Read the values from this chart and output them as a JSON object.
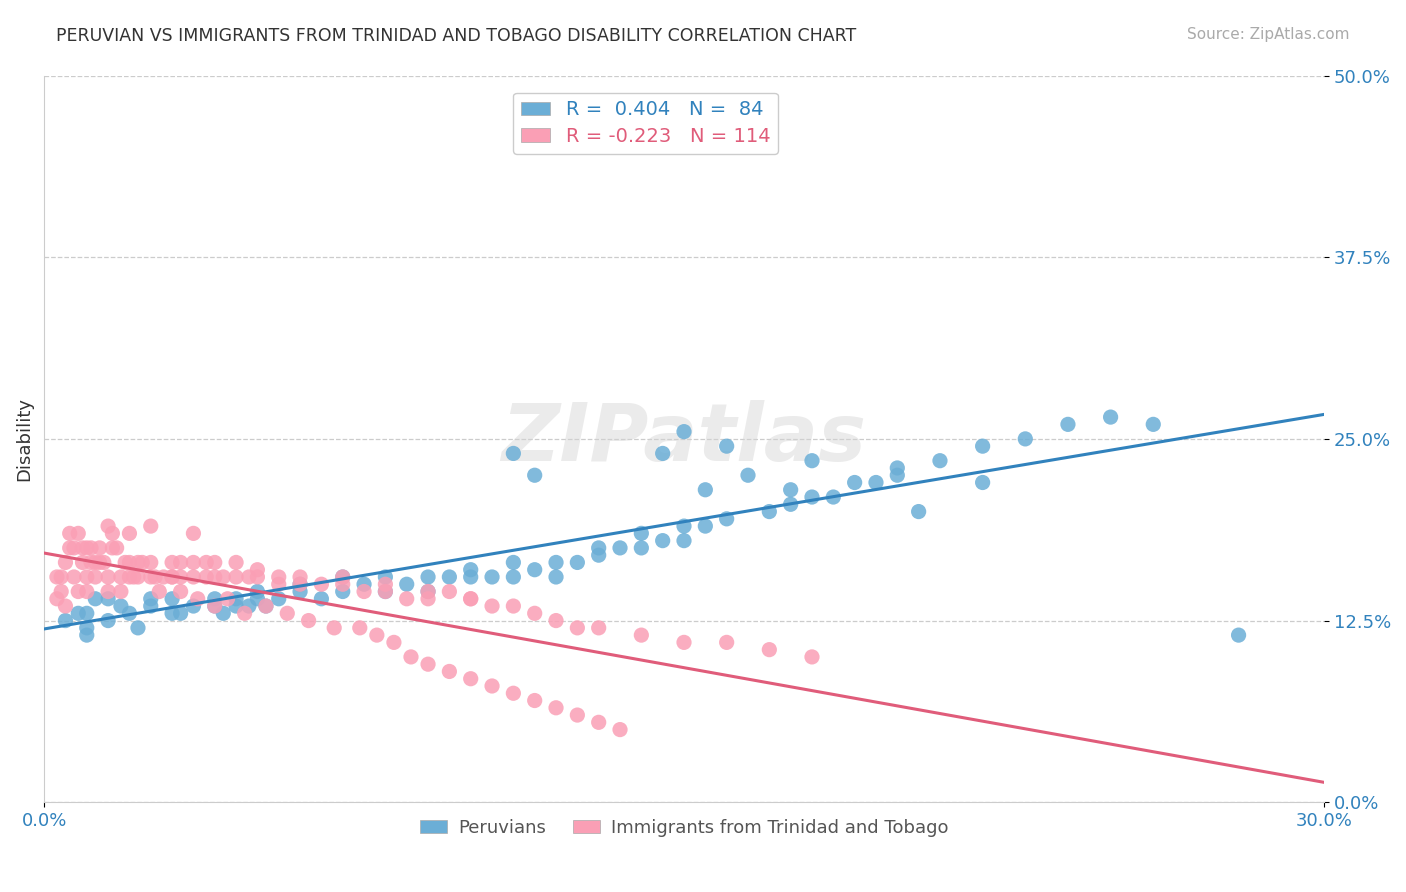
{
  "title": "PERUVIAN VS IMMIGRANTS FROM TRINIDAD AND TOBAGO DISABILITY CORRELATION CHART",
  "source": "Source: ZipAtlas.com",
  "ylabel": "Disability",
  "xlabel_ticks": [
    "0.0%",
    "30.0%"
  ],
  "ytick_labels": [
    "0.0%",
    "12.5%",
    "25.0%",
    "37.5%",
    "50.0%"
  ],
  "ytick_values": [
    0.0,
    0.125,
    0.25,
    0.375,
    0.5
  ],
  "xtick_values": [
    0.0,
    0.3
  ],
  "ylim": [
    0.0,
    0.5
  ],
  "xlim": [
    0.0,
    0.3
  ],
  "legend_blue_label": "R =  0.404   N =  84",
  "legend_pink_label": "R = -0.223   N = 114",
  "legend_bottom_blue": "Peruvians",
  "legend_bottom_pink": "Immigrants from Trinidad and Tobago",
  "blue_color": "#6baed6",
  "pink_color": "#fa9fb5",
  "blue_line_color": "#3182bd",
  "pink_line_color": "#e05c7a",
  "R_blue": 0.404,
  "R_pink": -0.223,
  "N_blue": 84,
  "N_pink": 114,
  "watermark": "ZIPatlas",
  "blue_scatter_x": [
    0.01,
    0.01,
    0.015,
    0.01,
    0.005,
    0.008,
    0.012,
    0.015,
    0.018,
    0.02,
    0.022,
    0.025,
    0.025,
    0.03,
    0.03,
    0.032,
    0.035,
    0.04,
    0.04,
    0.042,
    0.045,
    0.045,
    0.048,
    0.05,
    0.05,
    0.052,
    0.055,
    0.06,
    0.06,
    0.065,
    0.07,
    0.07,
    0.075,
    0.08,
    0.08,
    0.085,
    0.09,
    0.09,
    0.095,
    0.1,
    0.1,
    0.105,
    0.11,
    0.11,
    0.115,
    0.12,
    0.12,
    0.125,
    0.13,
    0.13,
    0.135,
    0.14,
    0.14,
    0.145,
    0.15,
    0.15,
    0.155,
    0.16,
    0.17,
    0.175,
    0.18,
    0.19,
    0.2,
    0.21,
    0.22,
    0.23,
    0.24,
    0.25,
    0.26,
    0.28,
    0.15,
    0.16,
    0.18,
    0.2,
    0.22,
    0.145,
    0.155,
    0.165,
    0.175,
    0.185,
    0.195,
    0.205,
    0.11,
    0.115
  ],
  "blue_scatter_y": [
    0.13,
    0.12,
    0.14,
    0.115,
    0.125,
    0.13,
    0.14,
    0.125,
    0.135,
    0.13,
    0.12,
    0.135,
    0.14,
    0.13,
    0.14,
    0.13,
    0.135,
    0.14,
    0.135,
    0.13,
    0.135,
    0.14,
    0.135,
    0.14,
    0.145,
    0.135,
    0.14,
    0.145,
    0.15,
    0.14,
    0.145,
    0.155,
    0.15,
    0.155,
    0.145,
    0.15,
    0.155,
    0.145,
    0.155,
    0.155,
    0.16,
    0.155,
    0.165,
    0.155,
    0.16,
    0.165,
    0.155,
    0.165,
    0.17,
    0.175,
    0.175,
    0.175,
    0.185,
    0.18,
    0.19,
    0.18,
    0.19,
    0.195,
    0.2,
    0.205,
    0.21,
    0.22,
    0.23,
    0.235,
    0.245,
    0.25,
    0.26,
    0.265,
    0.26,
    0.115,
    0.255,
    0.245,
    0.235,
    0.225,
    0.22,
    0.24,
    0.215,
    0.225,
    0.215,
    0.21,
    0.22,
    0.2,
    0.24,
    0.225
  ],
  "pink_scatter_x": [
    0.005,
    0.008,
    0.01,
    0.01,
    0.012,
    0.012,
    0.015,
    0.015,
    0.018,
    0.018,
    0.02,
    0.02,
    0.022,
    0.022,
    0.025,
    0.025,
    0.028,
    0.03,
    0.03,
    0.032,
    0.032,
    0.035,
    0.035,
    0.038,
    0.038,
    0.04,
    0.04,
    0.042,
    0.045,
    0.045,
    0.048,
    0.05,
    0.05,
    0.055,
    0.055,
    0.06,
    0.06,
    0.065,
    0.07,
    0.07,
    0.075,
    0.08,
    0.08,
    0.085,
    0.09,
    0.09,
    0.095,
    0.1,
    0.1,
    0.105,
    0.11,
    0.115,
    0.12,
    0.125,
    0.13,
    0.14,
    0.15,
    0.16,
    0.17,
    0.18,
    0.003,
    0.003,
    0.004,
    0.004,
    0.005,
    0.006,
    0.006,
    0.007,
    0.007,
    0.008,
    0.009,
    0.009,
    0.01,
    0.011,
    0.011,
    0.013,
    0.013,
    0.014,
    0.016,
    0.016,
    0.017,
    0.019,
    0.021,
    0.023,
    0.026,
    0.027,
    0.03,
    0.032,
    0.036,
    0.04,
    0.043,
    0.047,
    0.052,
    0.057,
    0.062,
    0.068,
    0.074,
    0.078,
    0.082,
    0.086,
    0.09,
    0.095,
    0.1,
    0.105,
    0.11,
    0.115,
    0.12,
    0.125,
    0.13,
    0.135,
    0.025,
    0.015,
    0.02,
    0.035
  ],
  "pink_scatter_y": [
    0.135,
    0.145,
    0.155,
    0.145,
    0.155,
    0.165,
    0.145,
    0.155,
    0.155,
    0.145,
    0.155,
    0.165,
    0.155,
    0.165,
    0.155,
    0.165,
    0.155,
    0.165,
    0.155,
    0.165,
    0.155,
    0.165,
    0.155,
    0.165,
    0.155,
    0.155,
    0.165,
    0.155,
    0.155,
    0.165,
    0.155,
    0.16,
    0.155,
    0.15,
    0.155,
    0.15,
    0.155,
    0.15,
    0.15,
    0.155,
    0.145,
    0.15,
    0.145,
    0.14,
    0.145,
    0.14,
    0.145,
    0.14,
    0.14,
    0.135,
    0.135,
    0.13,
    0.125,
    0.12,
    0.12,
    0.115,
    0.11,
    0.11,
    0.105,
    0.1,
    0.14,
    0.155,
    0.145,
    0.155,
    0.165,
    0.175,
    0.185,
    0.175,
    0.155,
    0.185,
    0.175,
    0.165,
    0.175,
    0.165,
    0.175,
    0.165,
    0.175,
    0.165,
    0.185,
    0.175,
    0.175,
    0.165,
    0.155,
    0.165,
    0.155,
    0.145,
    0.155,
    0.145,
    0.14,
    0.135,
    0.14,
    0.13,
    0.135,
    0.13,
    0.125,
    0.12,
    0.12,
    0.115,
    0.11,
    0.1,
    0.095,
    0.09,
    0.085,
    0.08,
    0.075,
    0.07,
    0.065,
    0.06,
    0.055,
    0.05,
    0.19,
    0.19,
    0.185,
    0.185
  ]
}
